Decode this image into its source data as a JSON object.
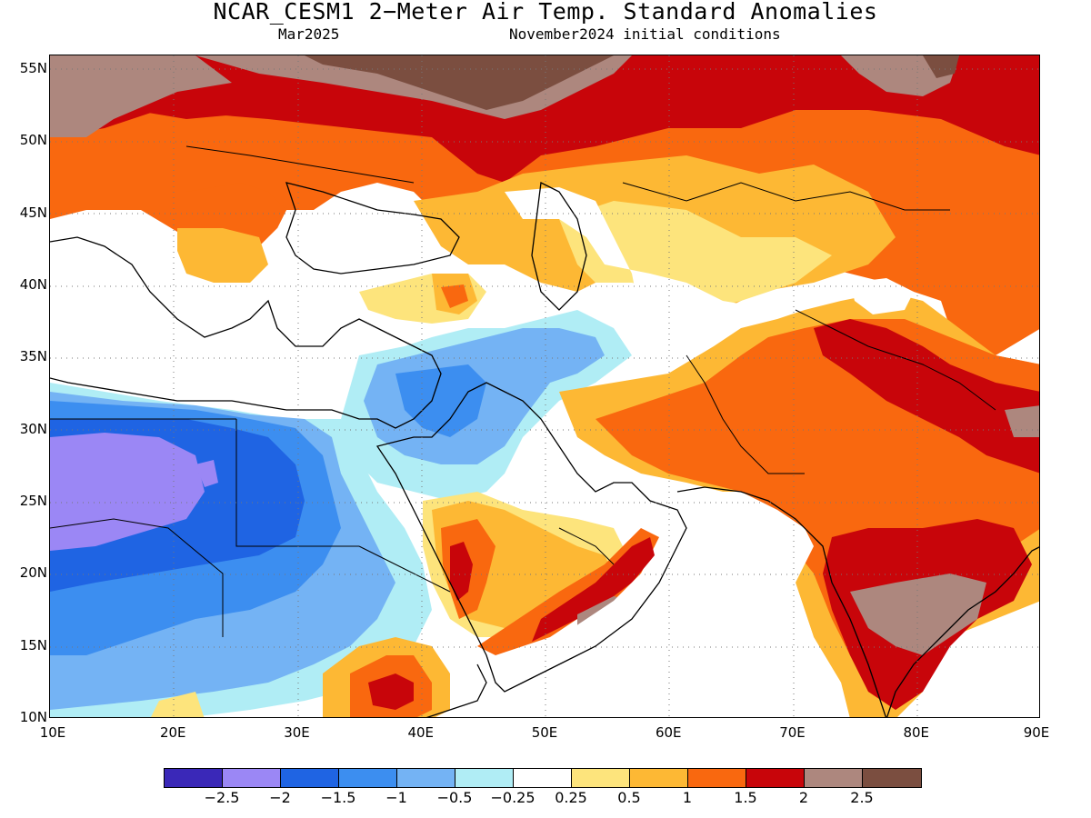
{
  "header": {
    "title": "NCAR_CESM1 2−Meter Air Temp. Standard Anomalies",
    "valid_month": "Mar2025",
    "init": "November2024 initial conditions"
  },
  "map": {
    "lon_range": [
      10,
      90
    ],
    "lat_range": [
      10,
      56
    ],
    "lat_ticks": [
      "55N",
      "50N",
      "45N",
      "40N",
      "35N",
      "30N",
      "25N",
      "20N",
      "15N",
      "10N"
    ],
    "lat_tick_values": [
      55,
      50,
      45,
      40,
      35,
      30,
      25,
      20,
      15,
      10
    ],
    "lon_ticks": [
      "10E",
      "20E",
      "30E",
      "40E",
      "50E",
      "60E",
      "70E",
      "80E",
      "90E"
    ],
    "lon_tick_values": [
      10,
      20,
      30,
      40,
      50,
      60,
      70,
      80,
      90
    ],
    "gridlines": "dotted"
  },
  "legend": {
    "colors": [
      "#3a28b8",
      "#9b87f5",
      "#1f64e3",
      "#3c8ef0",
      "#74b3f4",
      "#b0edf5",
      "#ffffff",
      "#fde47c",
      "#fdb834",
      "#f9680f",
      "#c8050a",
      "#ad877e",
      "#7b4e40"
    ],
    "labels": [
      "−2.5",
      "−2",
      "−1.5",
      "−1",
      "−0.5",
      "−0.25",
      "0.25",
      "0.5",
      "1",
      "1.5",
      "2",
      "2.5"
    ]
  }
}
